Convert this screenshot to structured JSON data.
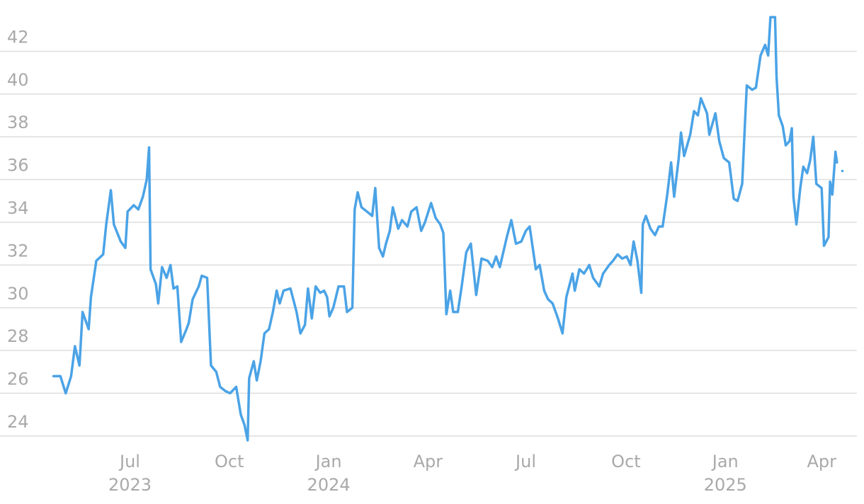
{
  "chart_data": {
    "type": "line",
    "x": [
      0,
      0.9,
      1.6,
      2.3,
      2.8,
      3.4,
      3.8,
      4.6,
      4.9,
      5.6,
      6.5,
      6.9,
      7.5,
      7.9,
      8.8,
      9.4,
      9.7,
      10.5,
      11.1,
      11.7,
      12.2,
      12.5,
      12.7,
      13.4,
      13.7,
      14.2,
      14.8,
      15.3,
      15.7,
      16.2,
      16.7,
      17.4,
      17.7,
      18.2,
      19.0,
      19.4,
      20.1,
      20.6,
      21.3,
      21.8,
      22.5,
      23.1,
      23.9,
      24.5,
      25.0,
      25.4,
      25.6,
      26.2,
      26.6,
      27.1,
      27.6,
      28.2,
      28.7,
      29.2,
      29.6,
      30.1,
      31.0,
      31.8,
      32.3,
      32.9,
      33.3,
      33.8,
      34.3,
      34.9,
      35.4,
      35.8,
      36.1,
      36.6,
      37.3,
      38.0,
      38.4,
      39.1,
      39.4,
      39.8,
      40.3,
      41.0,
      41.7,
      42.1,
      42.6,
      43.1,
      43.5,
      44.0,
      44.4,
      45.1,
      45.6,
      46.3,
      46.8,
      47.5,
      48.1,
      48.6,
      49.4,
      50.0,
      50.6,
      51.0,
      51.4,
      51.9,
      52.3,
      52.9,
      53.4,
      54.0,
      54.6,
      55.3,
      56.0,
      56.8,
      57.4,
      57.9,
      58.4,
      59.3,
      59.9,
      60.5,
      61.2,
      61.8,
      62.3,
      63.1,
      63.6,
      64.2,
      64.7,
      65.3,
      66.0,
      66.6,
      67.1,
      67.9,
      68.2,
      68.8,
      69.4,
      70.1,
      70.6,
      71.4,
      71.9,
      72.7,
      73.2,
      73.8,
      74.4,
      75.0,
      75.5,
      75.9,
      76.4,
      76.9,
      77.1,
      77.5,
      78.1,
      78.7,
      79.2,
      79.7,
      80.3,
      80.8,
      81.2,
      81.8,
      82.1,
      82.5,
      83.3,
      83.8,
      84.3,
      84.7,
      85.5,
      85.8,
      86.6,
      87.1,
      87.7,
      88.4,
      89.0,
      89.5,
      90.1,
      90.5,
      90.7,
      91.4,
      91.9,
      92.5,
      93.1,
      93.5,
      93.8,
      94.4,
      94.6,
      94.9,
      95.4,
      95.8,
      96.3,
      96.6,
      96.8,
      97.2,
      97.7,
      98.1,
      98.6,
      99.0,
      99.4,
      99.8,
      100.5,
      100.8,
      101.4,
      101.6,
      101.9,
      102.3,
      102.5,
      102.9,
      103.2
    ],
    "series": [
      {
        "color": "#4ba3e6",
        "values": [
          26.8,
          26.8,
          26.0,
          26.8,
          28.2,
          27.3,
          29.8,
          29.0,
          30.5,
          32.2,
          32.5,
          33.9,
          35.5,
          33.9,
          33.1,
          32.8,
          34.5,
          34.8,
          34.6,
          35.2,
          36.0,
          37.5,
          31.8,
          31.1,
          30.2,
          31.9,
          31.4,
          32.0,
          30.9,
          31.0,
          28.4,
          29.0,
          29.3,
          30.4,
          31.0,
          31.5,
          31.4,
          27.3,
          27.0,
          26.3,
          26.1,
          26.0,
          26.3,
          25.0,
          24.5,
          23.8,
          26.7,
          27.5,
          26.6,
          27.5,
          28.8,
          29.0,
          29.8,
          30.8,
          30.2,
          30.8,
          30.9,
          29.8,
          28.8,
          29.2,
          30.9,
          29.5,
          31.0,
          30.7,
          30.8,
          30.5,
          29.6,
          30.0,
          31.0,
          31.0,
          29.8,
          30.0,
          34.6,
          35.4,
          34.7,
          34.5,
          34.3,
          35.6,
          32.8,
          32.4,
          33.0,
          33.6,
          34.7,
          33.7,
          34.1,
          33.8,
          34.5,
          34.7,
          33.6,
          34.0,
          34.9,
          34.2,
          33.9,
          33.5,
          29.7,
          30.8,
          29.8,
          29.8,
          31.0,
          32.6,
          33.0,
          30.6,
          32.3,
          32.2,
          31.9,
          32.4,
          31.9,
          33.3,
          34.1,
          33.0,
          33.1,
          33.6,
          33.8,
          31.8,
          32.0,
          30.8,
          30.4,
          30.2,
          29.5,
          28.8,
          30.5,
          31.6,
          30.8,
          31.8,
          31.6,
          32.0,
          31.4,
          31.0,
          31.6,
          32.0,
          32.2,
          32.5,
          32.3,
          32.4,
          32.0,
          33.1,
          32.2,
          30.7,
          33.9,
          34.3,
          33.7,
          33.4,
          33.8,
          33.8,
          35.3,
          36.8,
          35.2,
          37.0,
          38.2,
          37.1,
          38.1,
          39.2,
          39.0,
          39.8,
          39.1,
          38.1,
          39.1,
          37.8,
          37.0,
          36.8,
          35.1,
          35.0,
          35.8,
          38.9,
          40.4,
          40.2,
          40.3,
          41.8,
          42.3,
          41.8,
          43.6,
          43.6,
          40.8,
          39.0,
          38.5,
          37.6,
          37.8,
          38.4,
          35.2,
          33.9,
          35.6,
          36.6,
          36.3,
          36.9,
          38.0,
          35.8,
          35.6,
          32.9,
          33.3,
          35.9,
          35.3,
          37.3,
          36.8,
          null,
          36.4
        ]
      }
    ],
    "xlim": [
      -7,
      104
    ],
    "xticks": [
      {
        "value": 10.0,
        "label": "Jul",
        "year": "2023"
      },
      {
        "value": 23.0,
        "label": "Oct"
      },
      {
        "value": 36.0,
        "label": "Jan",
        "year": "2024"
      },
      {
        "value": 49.0,
        "label": "Apr"
      },
      {
        "value": 61.8,
        "label": "Jul"
      },
      {
        "value": 74.9,
        "label": "Oct"
      },
      {
        "value": 87.9,
        "label": "Jan",
        "year": "2025"
      },
      {
        "value": 100.5,
        "label": "Apr"
      }
    ],
    "ylim": [
      23.7,
      44.4
    ],
    "yticks": [
      24,
      26,
      28,
      30,
      32,
      34,
      36,
      38,
      40,
      42
    ],
    "grid": true,
    "grid_color": "#dedede"
  }
}
